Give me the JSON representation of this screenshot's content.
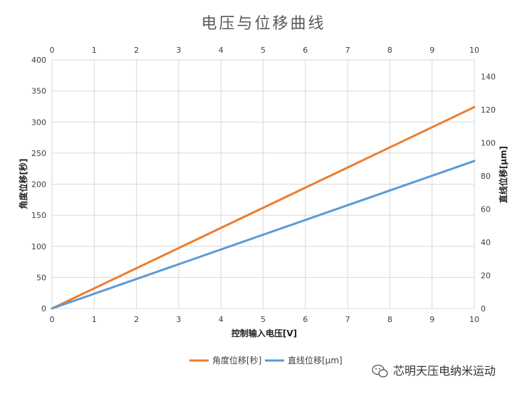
{
  "chart_data": {
    "type": "line",
    "title": "电压与位移曲线",
    "xlabel": "控制输入电压[V]",
    "ylabel": "角度位移[秒]",
    "y2label": "直线位移[μm]",
    "xlim": [
      0,
      10
    ],
    "ylim": [
      0,
      400
    ],
    "y2lim": [
      0,
      150
    ],
    "x_ticks": [
      "0",
      "1",
      "2",
      "3",
      "4",
      "5",
      "6",
      "7",
      "8",
      "9",
      "10"
    ],
    "y_ticks": [
      "0",
      "50",
      "100",
      "150",
      "200",
      "250",
      "300",
      "350",
      "400"
    ],
    "y2_ticks": [
      "0",
      "20",
      "40",
      "60",
      "80",
      "100",
      "120",
      "140"
    ],
    "grid": true,
    "legend_position": "bottom",
    "series": [
      {
        "name": "角度位移[秒]",
        "axis": "left",
        "color": "#ED7D31",
        "x": [
          0,
          10
        ],
        "y": [
          0,
          324
        ]
      },
      {
        "name": "直线位移[μm]",
        "axis": "right",
        "color": "#5B9BD5",
        "x": [
          0,
          10
        ],
        "y": [
          0,
          89
        ]
      }
    ]
  },
  "watermark": {
    "text": "芯明天压电纳米运动",
    "icon": "wechat-icon"
  }
}
